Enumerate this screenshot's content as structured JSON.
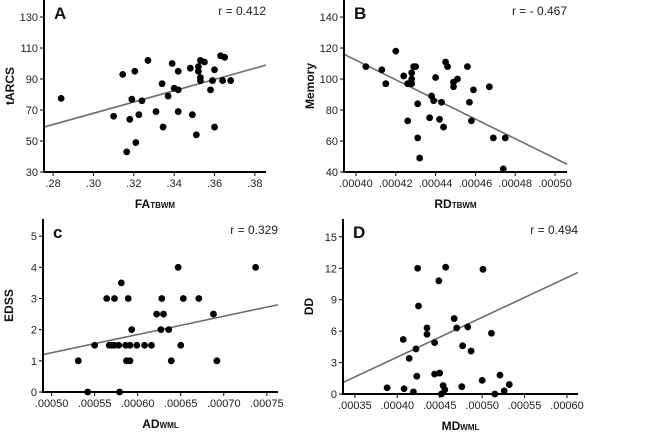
{
  "chart_data": [
    {
      "type": "scatter",
      "panel": "A",
      "annotation": "r = 0.412",
      "xlabel": "FA",
      "xlabel_sub": "TBWM",
      "ylabel": "tARCS",
      "xlim": [
        0.2755,
        0.3855
      ],
      "ylim": [
        30,
        141
      ],
      "xticks": [
        0.28,
        0.3,
        0.32,
        0.34,
        0.36,
        0.38
      ],
      "xtick_labels": [
        ".28",
        ".30",
        ".32",
        ".34",
        ".36",
        ".38"
      ],
      "yticks": [
        30,
        50,
        70,
        90,
        110,
        130
      ],
      "ytick_labels": [
        "30",
        "50",
        "70",
        "90",
        "110",
        "130"
      ],
      "points": [
        [
          0.284,
          77.5
        ],
        [
          0.31,
          66
        ],
        [
          0.3145,
          93
        ],
        [
          0.318,
          64
        ],
        [
          0.319,
          77
        ],
        [
          0.3205,
          95
        ],
        [
          0.3165,
          43
        ],
        [
          0.321,
          49
        ],
        [
          0.3225,
          67
        ],
        [
          0.324,
          76
        ],
        [
          0.327,
          102
        ],
        [
          0.331,
          69
        ],
        [
          0.334,
          87
        ],
        [
          0.3345,
          59
        ],
        [
          0.337,
          79
        ],
        [
          0.339,
          100
        ],
        [
          0.34,
          84
        ],
        [
          0.342,
          95
        ],
        [
          0.342,
          83
        ],
        [
          0.342,
          69
        ],
        [
          0.348,
          97
        ],
        [
          0.349,
          67
        ],
        [
          0.351,
          54
        ],
        [
          0.352,
          98
        ],
        [
          0.352,
          95
        ],
        [
          0.353,
          102
        ],
        [
          0.353,
          91
        ],
        [
          0.353,
          89
        ],
        [
          0.355,
          101
        ],
        [
          0.358,
          83
        ],
        [
          0.359,
          89
        ],
        [
          0.36,
          96
        ],
        [
          0.36,
          59
        ],
        [
          0.363,
          105
        ],
        [
          0.365,
          104
        ],
        [
          0.364,
          89
        ],
        [
          0.368,
          89
        ]
      ],
      "fit_line": [
        [
          0.2755,
          59
        ],
        [
          0.3855,
          99
        ]
      ]
    },
    {
      "type": "scatter",
      "panel": "B",
      "annotation": "r = - 0.467",
      "xlabel": "RD",
      "xlabel_sub": "TBWM",
      "ylabel": "Memory",
      "xlim": [
        0.000394,
        0.000506
      ],
      "ylim": [
        40,
        151
      ],
      "xticks": [
        0.0004,
        0.00042,
        0.00044,
        0.00046,
        0.00048,
        0.0005
      ],
      "xtick_labels": [
        ".00040",
        ".00042",
        ".00044",
        ".00046",
        ".00048",
        ".00050"
      ],
      "yticks": [
        40,
        60,
        80,
        100,
        120,
        140
      ],
      "ytick_labels": [
        "40",
        "60",
        "80",
        "100",
        "120",
        "140"
      ],
      "points": [
        [
          0.000405,
          108
        ],
        [
          0.000413,
          106
        ],
        [
          0.000415,
          97
        ],
        [
          0.00042,
          118
        ],
        [
          0.000424,
          102
        ],
        [
          0.000426,
          97
        ],
        [
          0.000426,
          73
        ],
        [
          0.000428,
          100
        ],
        [
          0.000428,
          104
        ],
        [
          0.000428,
          97
        ],
        [
          0.000429,
          108
        ],
        [
          0.00043,
          108
        ],
        [
          0.000431,
          84
        ],
        [
          0.000431,
          62
        ],
        [
          0.000432,
          49
        ],
        [
          0.000437,
          75
        ],
        [
          0.000438,
          89
        ],
        [
          0.000439,
          86
        ],
        [
          0.00044,
          101
        ],
        [
          0.000442,
          74
        ],
        [
          0.000443,
          85
        ],
        [
          0.000444,
          69
        ],
        [
          0.000445,
          111
        ],
        [
          0.000446,
          108
        ],
        [
          0.000449,
          95
        ],
        [
          0.000449,
          98
        ],
        [
          0.000451,
          100
        ],
        [
          0.000456,
          108
        ],
        [
          0.000457,
          85
        ],
        [
          0.000458,
          73
        ],
        [
          0.000459,
          93
        ],
        [
          0.000467,
          95
        ],
        [
          0.000469,
          62
        ],
        [
          0.000474,
          42
        ],
        [
          0.000475,
          62
        ]
      ],
      "fit_line": [
        [
          0.000394,
          116
        ],
        [
          0.000506,
          45
        ]
      ]
    },
    {
      "type": "scatter",
      "panel": "c",
      "annotation": "r = 0.329",
      "xlabel": "AD",
      "xlabel_sub": "WML",
      "ylabel": "EDSS",
      "xlim": [
        0.00049,
        0.000763
      ],
      "ylim": [
        0,
        5.55
      ],
      "xticks": [
        0.0005,
        0.00055,
        0.0006,
        0.00065,
        0.0007,
        0.00075
      ],
      "xtick_labels": [
        ".00050",
        ".00055",
        ".00060",
        ".00065",
        ".00070",
        ".00075"
      ],
      "yticks": [
        0,
        1,
        2,
        3,
        4,
        5
      ],
      "ytick_labels": [
        "0",
        "1",
        "2",
        "3",
        "4",
        "5"
      ],
      "points": [
        [
          0.000531,
          1
        ],
        [
          0.000542,
          0
        ],
        [
          0.00055,
          1.5
        ],
        [
          0.000564,
          3
        ],
        [
          0.000567,
          1.5
        ],
        [
          0.00057,
          1.5
        ],
        [
          0.000573,
          3
        ],
        [
          0.000573,
          1.5
        ],
        [
          0.000578,
          1.5
        ],
        [
          0.000579,
          0
        ],
        [
          0.000581,
          3.5
        ],
        [
          0.000586,
          1.5
        ],
        [
          0.000587,
          1
        ],
        [
          0.000589,
          3
        ],
        [
          0.000591,
          1
        ],
        [
          0.000591,
          1.5
        ],
        [
          0.000593,
          2
        ],
        [
          0.000599,
          1.5
        ],
        [
          0.000608,
          1.5
        ],
        [
          0.000616,
          1.5
        ],
        [
          0.000622,
          2.5
        ],
        [
          0.000627,
          2
        ],
        [
          0.000628,
          3
        ],
        [
          0.00063,
          2.5
        ],
        [
          0.000636,
          2
        ],
        [
          0.000639,
          1
        ],
        [
          0.000647,
          4
        ],
        [
          0.00065,
          1.5
        ],
        [
          0.000653,
          3
        ],
        [
          0.000671,
          3
        ],
        [
          0.000688,
          2.5
        ],
        [
          0.000692,
          1
        ],
        [
          0.000737,
          4
        ]
      ],
      "fit_line": [
        [
          0.00049,
          1.2
        ],
        [
          0.000763,
          2.8
        ]
      ]
    },
    {
      "type": "scatter",
      "panel": "D",
      "annotation": "r = 0.494",
      "xlabel": "MD",
      "xlabel_sub": "WML",
      "ylabel": "DD",
      "xlim": [
        0.000336,
        0.000613
      ],
      "ylim": [
        0,
        16.7
      ],
      "xticks": [
        0.00035,
        0.0004,
        0.00045,
        0.0005,
        0.00055,
        0.0006
      ],
      "xtick_labels": [
        ".00035",
        ".00040",
        ".00045",
        ".00050",
        ".00055",
        ".00060"
      ],
      "yticks": [
        0,
        3,
        6,
        9,
        12,
        15
      ],
      "ytick_labels": [
        "0",
        "3",
        "6",
        "9",
        "12",
        "15"
      ],
      "points": [
        [
          0.000388,
          0.6
        ],
        [
          0.000408,
          0.5
        ],
        [
          0.000407,
          5.2
        ],
        [
          0.000414,
          3.4
        ],
        [
          0.000419,
          0.2
        ],
        [
          0.000422,
          4.3
        ],
        [
          0.000423,
          1.7
        ],
        [
          0.000424,
          12
        ],
        [
          0.000425,
          8.4
        ],
        [
          0.000435,
          6.3
        ],
        [
          0.000435,
          5.7
        ],
        [
          0.000444,
          1.9
        ],
        [
          0.000444,
          4.9
        ],
        [
          0.000449,
          10.8
        ],
        [
          0.00045,
          2.0
        ],
        [
          0.000452,
          0
        ],
        [
          0.000454,
          0.8
        ],
        [
          0.000456,
          0.4
        ],
        [
          0.000457,
          12.1
        ],
        [
          0.000467,
          7.2
        ],
        [
          0.00047,
          6.3
        ],
        [
          0.000476,
          0.7
        ],
        [
          0.000477,
          4.6
        ],
        [
          0.000483,
          6.4
        ],
        [
          0.000487,
          4.1
        ],
        [
          0.0005,
          1.3
        ],
        [
          0.000501,
          11.9
        ],
        [
          0.000511,
          5.8
        ],
        [
          0.000515,
          0
        ],
        [
          0.000521,
          1.8
        ],
        [
          0.000526,
          0.3
        ],
        [
          0.000532,
          0.9
        ]
      ],
      "fit_line": [
        [
          0.000336,
          1.1
        ],
        [
          0.000613,
          11.6
        ]
      ]
    }
  ]
}
